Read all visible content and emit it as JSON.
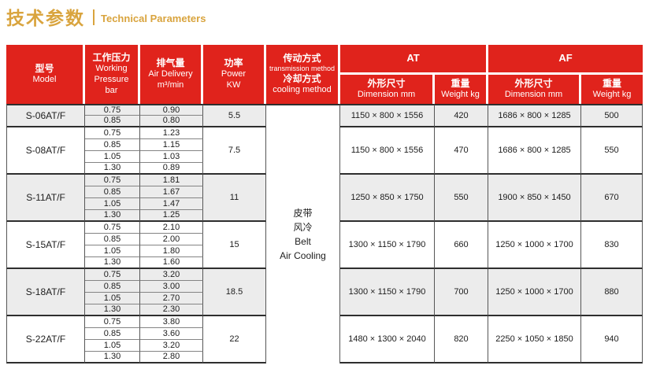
{
  "page_title": {
    "zh": "技术参数",
    "en": "Technical Parameters"
  },
  "colors": {
    "header_red": "#e0231c",
    "title_gold": "#d9a43e",
    "stripe": "#ececec",
    "border_dark": "#2e2e2e"
  },
  "table": {
    "headers": {
      "model": {
        "zh": "型号",
        "en": "Model"
      },
      "pressure": {
        "zh": "工作压力",
        "en_line1": "Working",
        "en_line2": "Pressure",
        "unit": "bar"
      },
      "delivery": {
        "zh": "排气量",
        "en": "Air Delivery",
        "unit": "m³/min"
      },
      "power": {
        "zh": "功率",
        "en": "Power",
        "unit": "KW"
      },
      "transmission": {
        "zh1": "传动方式",
        "en1": "transmission method",
        "zh2": "冷却方式",
        "en2": "cooling method"
      },
      "at_label": "AT",
      "af_label": "AF",
      "dimension": {
        "zh": "外形尺寸",
        "en": "Dimension mm"
      },
      "weight": {
        "zh": "重量",
        "en": "Weight kg"
      }
    },
    "transmission_cell": {
      "zh1": "皮带",
      "zh2": "风冷",
      "en1": "Belt",
      "en2": "Air Cooling"
    },
    "groups": [
      {
        "model": "S-06AT/F",
        "power": "5.5",
        "shaded": true,
        "rows": [
          [
            "0.75",
            "0.90"
          ],
          [
            "0.85",
            "0.80"
          ]
        ],
        "at": {
          "dim": "1150 × 800 × 1556",
          "weight": "420"
        },
        "af": {
          "dim": "1686 × 800 × 1285",
          "weight": "500"
        }
      },
      {
        "model": "S-08AT/F",
        "power": "7.5",
        "shaded": false,
        "rows": [
          [
            "0.75",
            "1.23"
          ],
          [
            "0.85",
            "1.15"
          ],
          [
            "1.05",
            "1.03"
          ],
          [
            "1.30",
            "0.89"
          ]
        ],
        "at": {
          "dim": "1150 × 800 × 1556",
          "weight": "470"
        },
        "af": {
          "dim": "1686 × 800 × 1285",
          "weight": "550"
        }
      },
      {
        "model": "S-11AT/F",
        "power": "11",
        "shaded": true,
        "rows": [
          [
            "0.75",
            "1.81"
          ],
          [
            "0.85",
            "1.67"
          ],
          [
            "1.05",
            "1.47"
          ],
          [
            "1.30",
            "1.25"
          ]
        ],
        "at": {
          "dim": "1250 × 850 × 1750",
          "weight": "550"
        },
        "af": {
          "dim": "1900 × 850 × 1450",
          "weight": "670"
        }
      },
      {
        "model": "S-15AT/F",
        "power": "15",
        "shaded": false,
        "rows": [
          [
            "0.75",
            "2.10"
          ],
          [
            "0.85",
            "2.00"
          ],
          [
            "1.05",
            "1.80"
          ],
          [
            "1.30",
            "1.60"
          ]
        ],
        "at": {
          "dim": "1300 × 1150 × 1790",
          "weight": "660"
        },
        "af": {
          "dim": "1250 × 1000 × 1700",
          "weight": "830"
        }
      },
      {
        "model": "S-18AT/F",
        "power": "18.5",
        "shaded": true,
        "rows": [
          [
            "0.75",
            "3.20"
          ],
          [
            "0.85",
            "3.00"
          ],
          [
            "1.05",
            "2.70"
          ],
          [
            "1.30",
            "2.30"
          ]
        ],
        "at": {
          "dim": "1300 × 1150 × 1790",
          "weight": "700"
        },
        "af": {
          "dim": "1250 × 1000 × 1700",
          "weight": "880"
        }
      },
      {
        "model": "S-22AT/F",
        "power": "22",
        "shaded": false,
        "rows": [
          [
            "0.75",
            "3.80"
          ],
          [
            "0.85",
            "3.60"
          ],
          [
            "1.05",
            "3.20"
          ],
          [
            "1.30",
            "2.80"
          ]
        ],
        "at": {
          "dim": "1480 × 1300 × 2040",
          "weight": "820"
        },
        "af": {
          "dim": "2250 × 1050 × 1850",
          "weight": "940"
        }
      }
    ]
  }
}
